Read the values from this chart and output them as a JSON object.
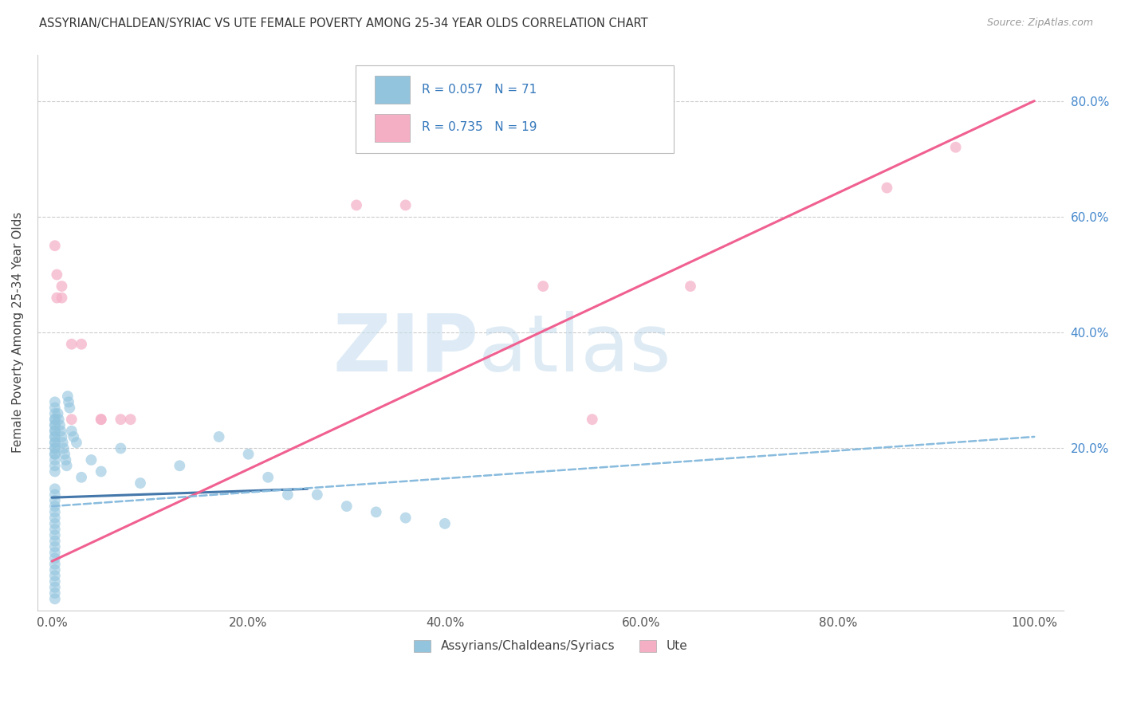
{
  "title": "ASSYRIAN/CHALDEAN/SYRIAC VS UTE FEMALE POVERTY AMONG 25-34 YEAR OLDS CORRELATION CHART",
  "source": "Source: ZipAtlas.com",
  "ylabel": "Female Poverty Among 25-34 Year Olds",
  "legend_label1": "Assyrians/Chaldeans/Syriacs",
  "legend_label2": "Ute",
  "R1": 0.057,
  "N1": 71,
  "R2": 0.735,
  "N2": 19,
  "color_blue": "#92c4de",
  "color_pink": "#f5afc5",
  "color_blue_line": "#4477aa",
  "color_pink_line": "#f06090",
  "color_blue_dashed": "#88bbdd",
  "bg": "#ffffff",
  "grid_color": "#cccccc",
  "xticks": [
    0.0,
    0.2,
    0.4,
    0.6,
    0.8,
    1.0
  ],
  "xticklabels": [
    "0.0%",
    "20.0%",
    "40.0%",
    "60.0%",
    "80.0%",
    "100.0%"
  ],
  "yticks_right": [
    0.2,
    0.4,
    0.6,
    0.8
  ],
  "yticklabels_right": [
    "20.0%",
    "40.0%",
    "60.0%",
    "80.0%"
  ],
  "xlim": [
    -0.015,
    1.03
  ],
  "ylim": [
    -0.08,
    0.88
  ],
  "blue_x": [
    0.003,
    0.003,
    0.003,
    0.003,
    0.003,
    0.003,
    0.003,
    0.003,
    0.003,
    0.003,
    0.003,
    0.003,
    0.003,
    0.003,
    0.003,
    0.003,
    0.003,
    0.003,
    0.003,
    0.003,
    0.003,
    0.003,
    0.003,
    0.003,
    0.003,
    0.003,
    0.003,
    0.003,
    0.003,
    0.003,
    0.003,
    0.003,
    0.003,
    0.003,
    0.003,
    0.003,
    0.003,
    0.003,
    0.003,
    0.003,
    0.006,
    0.007,
    0.008,
    0.009,
    0.01,
    0.011,
    0.012,
    0.013,
    0.014,
    0.015,
    0.016,
    0.017,
    0.018,
    0.02,
    0.022,
    0.025,
    0.03,
    0.04,
    0.05,
    0.07,
    0.09,
    0.13,
    0.17,
    0.2,
    0.22,
    0.24,
    0.27,
    0.3,
    0.33,
    0.36,
    0.4
  ],
  "blue_y": [
    0.13,
    0.12,
    0.11,
    0.1,
    0.09,
    0.08,
    0.07,
    0.06,
    0.05,
    0.04,
    0.03,
    0.02,
    0.01,
    0.0,
    -0.01,
    -0.02,
    -0.03,
    -0.04,
    -0.05,
    -0.06,
    0.25,
    0.24,
    0.23,
    0.22,
    0.21,
    0.2,
    0.19,
    0.18,
    0.17,
    0.16,
    0.28,
    0.27,
    0.26,
    0.25,
    0.24,
    0.23,
    0.22,
    0.21,
    0.2,
    0.19,
    0.26,
    0.25,
    0.24,
    0.23,
    0.22,
    0.21,
    0.2,
    0.19,
    0.18,
    0.17,
    0.29,
    0.28,
    0.27,
    0.23,
    0.22,
    0.21,
    0.15,
    0.18,
    0.16,
    0.2,
    0.14,
    0.17,
    0.22,
    0.19,
    0.15,
    0.12,
    0.12,
    0.1,
    0.09,
    0.08,
    0.07
  ],
  "pink_x": [
    0.003,
    0.005,
    0.01,
    0.02,
    0.03,
    0.05,
    0.08,
    0.31,
    0.36,
    0.5,
    0.55,
    0.65,
    0.85,
    0.92,
    0.005,
    0.01,
    0.02,
    0.05,
    0.07
  ],
  "pink_y": [
    0.55,
    0.5,
    0.48,
    0.38,
    0.38,
    0.25,
    0.25,
    0.62,
    0.62,
    0.48,
    0.25,
    0.48,
    0.65,
    0.72,
    0.46,
    0.46,
    0.25,
    0.25,
    0.25
  ],
  "blue_line_x": [
    0.0,
    0.26
  ],
  "blue_line_y": [
    0.115,
    0.13
  ],
  "pink_line_x": [
    0.0,
    1.0
  ],
  "pink_line_y": [
    0.005,
    0.8
  ],
  "dashed_line_x": [
    0.0,
    1.0
  ],
  "dashed_line_y": [
    0.1,
    0.22
  ],
  "watermark_zip": "ZIP",
  "watermark_atlas": "atlas"
}
